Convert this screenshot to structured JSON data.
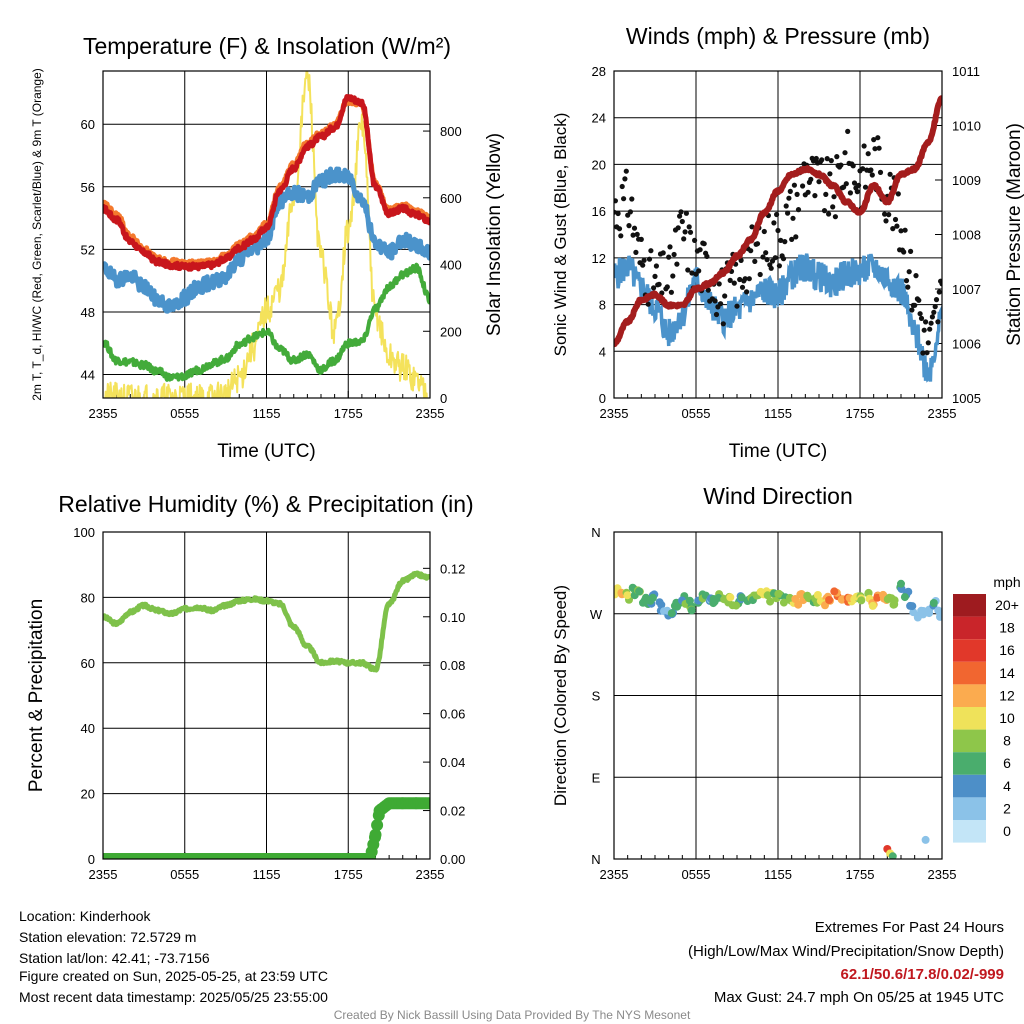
{
  "chart_data": [
    {
      "type": "line",
      "title": "Temperature (F) & Insolation (W/m²)",
      "xlabel": "Time (UTC)",
      "ylabel": "2m T, T_d, HI/WC (Red, Green, Scarlet/Blue) & 9m T (Orange)",
      "ylabel_right": "Solar Insolation (Yellow)",
      "x_ticks": [
        "2355",
        "0555",
        "1155",
        "1755",
        "2355"
      ],
      "ylim": [
        42.5,
        63.4
      ],
      "y_ticks": [
        44,
        48,
        52,
        56,
        60
      ],
      "ylim_right": [
        0,
        980
      ],
      "y_ticks_right": [
        0,
        200,
        400,
        600,
        800
      ],
      "series": [
        {
          "name": "2m T",
          "color": "#c8161c",
          "axis": "left",
          "x": [
            0,
            1,
            2,
            3,
            4,
            5,
            6,
            7,
            8,
            9,
            10,
            11,
            12,
            13,
            14,
            15,
            16,
            17,
            18,
            19,
            20,
            21,
            22,
            23,
            24
          ],
          "y": [
            54.6,
            53.9,
            52.5,
            51.8,
            51.2,
            51.0,
            50.9,
            50.9,
            51.0,
            51.4,
            52.1,
            52.6,
            53.4,
            55.8,
            57.2,
            58.6,
            59.2,
            59.8,
            61.7,
            61.4,
            56.0,
            54.3,
            54.6,
            54.2,
            53.8
          ]
        },
        {
          "name": "9m T",
          "color": "#f4792d",
          "axis": "left",
          "x": [
            0,
            1,
            2,
            3,
            4,
            5,
            6,
            7,
            8,
            9,
            10,
            11,
            12,
            13,
            14,
            15,
            16,
            17,
            18,
            19,
            20,
            21,
            22,
            23,
            24
          ],
          "y": [
            54.9,
            54.2,
            52.8,
            52.0,
            51.4,
            51.2,
            51.1,
            51.1,
            51.2,
            51.6,
            52.3,
            52.8,
            53.6,
            56.0,
            57.4,
            58.8,
            59.4,
            59.9,
            61.5,
            61.2,
            56.2,
            54.5,
            54.8,
            54.4,
            54.0
          ]
        },
        {
          "name": "HI/WC",
          "color": "#4b93cb",
          "axis": "left",
          "x": [
            0,
            1,
            2,
            3,
            4,
            5,
            6,
            7,
            8,
            9,
            10,
            11,
            12,
            13,
            14,
            15,
            16,
            17,
            18,
            19,
            20,
            21,
            22,
            23,
            24
          ],
          "y": [
            50.8,
            50.1,
            50.3,
            49.6,
            48.8,
            48.3,
            48.9,
            49.6,
            49.9,
            50.3,
            51.4,
            52.0,
            52.7,
            55.1,
            55.6,
            55.4,
            56.4,
            56.8,
            56.6,
            55.2,
            52.4,
            51.8,
            52.6,
            52.2,
            51.8
          ]
        },
        {
          "name": "T_d",
          "color": "#43ab3a",
          "axis": "left",
          "x": [
            0,
            1,
            2,
            3,
            4,
            5,
            6,
            7,
            8,
            9,
            10,
            11,
            12,
            13,
            14,
            15,
            16,
            17,
            18,
            19,
            20,
            21,
            22,
            23,
            24
          ],
          "y": [
            46.1,
            44.9,
            44.8,
            44.6,
            44.2,
            43.8,
            43.9,
            44.3,
            44.7,
            45.0,
            45.9,
            46.4,
            46.7,
            45.6,
            44.9,
            45.3,
            44.3,
            44.9,
            46.0,
            46.1,
            48.2,
            49.6,
            50.4,
            50.8,
            48.8
          ]
        },
        {
          "name": "Solar Insolation",
          "color": "#f4e25b",
          "axis": "right",
          "x": [
            0,
            1,
            2,
            3,
            4,
            5,
            6,
            7,
            8,
            9,
            10,
            11,
            12,
            13,
            14,
            15,
            16,
            17,
            18,
            19,
            20,
            21,
            22,
            23,
            24
          ],
          "y": [
            2,
            1,
            1,
            1,
            1,
            1,
            1,
            1,
            1,
            12,
            60,
            150,
            260,
            330,
            600,
            960,
            420,
            200,
            500,
            820,
            250,
            120,
            90,
            55,
            2
          ]
        }
      ]
    },
    {
      "type": "scatter",
      "title": "Winds (mph) & Pressure (mb)",
      "xlabel": "Time (UTC)",
      "ylabel": "Sonic Wind & Gust (Blue, Black)",
      "ylabel_right": "Station Pressure (Maroon)",
      "x_ticks": [
        "2355",
        "0555",
        "1155",
        "1755",
        "2355"
      ],
      "ylim": [
        0,
        28
      ],
      "y_ticks": [
        0,
        4,
        8,
        12,
        16,
        20,
        24,
        28
      ],
      "ylim_right": [
        1005,
        1011
      ],
      "y_ticks_right": [
        1005,
        1006,
        1007,
        1008,
        1009,
        1010,
        1011
      ],
      "series": [
        {
          "name": "Sonic Wind",
          "color": "#4b93cb",
          "axis": "left",
          "x": [
            0,
            1,
            2,
            3,
            4,
            5,
            6,
            7,
            8,
            9,
            10,
            11,
            12,
            13,
            14,
            15,
            16,
            17,
            18,
            19,
            20,
            21,
            22,
            23,
            24
          ],
          "y": [
            10.5,
            11.2,
            9.5,
            7.8,
            5.5,
            7.2,
            10.2,
            8.0,
            6.8,
            7.5,
            8.4,
            9.2,
            8.8,
            10.6,
            11.2,
            10.4,
            9.8,
            10.6,
            10.8,
            11.2,
            10.3,
            9.2,
            5.5,
            2.4,
            6.8
          ]
        },
        {
          "name": "Gust",
          "color": "#111111",
          "axis": "left",
          "x": [
            0,
            1,
            2,
            3,
            4,
            5,
            6,
            7,
            8,
            9,
            10,
            11,
            12,
            13,
            14,
            15,
            16,
            17,
            18,
            19,
            20,
            21,
            22,
            23,
            24
          ],
          "y": [
            16.2,
            16.8,
            11.8,
            9.5,
            10.2,
            14.2,
            11.6,
            10.8,
            8.8,
            10.2,
            12.2,
            13.4,
            13.8,
            15.8,
            19.4,
            18.2,
            17.6,
            20.2,
            18.8,
            20.6,
            17.8,
            14.6,
            9.2,
            4.6,
            8.6
          ]
        },
        {
          "name": "Station Pressure",
          "color": "#a41d1d",
          "axis": "right",
          "x": [
            0,
            1,
            2,
            3,
            4,
            5,
            6,
            7,
            8,
            9,
            10,
            11,
            12,
            13,
            14,
            15,
            16,
            17,
            18,
            19,
            20,
            21,
            22,
            23,
            24
          ],
          "y": [
            1006.0,
            1006.4,
            1006.8,
            1006.9,
            1006.7,
            1006.7,
            1007.0,
            1007.1,
            1007.3,
            1007.6,
            1007.9,
            1008.4,
            1008.8,
            1009.1,
            1009.2,
            1009.1,
            1008.9,
            1008.6,
            1008.4,
            1008.9,
            1008.6,
            1009.1,
            1009.2,
            1009.7,
            1010.5
          ]
        }
      ]
    },
    {
      "type": "line",
      "title": "Relative Humidity (%) & Precipitation (in)",
      "xlabel": "",
      "ylabel": "Percent & Precipitation",
      "x_ticks": [
        "2355",
        "0555",
        "1155",
        "1755",
        "2355"
      ],
      "ylim": [
        0,
        100
      ],
      "y_ticks": [
        0,
        20,
        40,
        60,
        80,
        100
      ],
      "ylim_right": [
        0,
        0.135
      ],
      "y_ticks_right": [
        "0.00",
        "0.02",
        "0.04",
        "0.06",
        "0.08",
        "0.10",
        "0.12"
      ],
      "series": [
        {
          "name": "Relative Humidity",
          "color": "#7ec14a",
          "axis": "left",
          "x": [
            0,
            1,
            2,
            3,
            4,
            5,
            6,
            7,
            8,
            9,
            10,
            11,
            12,
            13,
            14,
            15,
            16,
            17,
            18,
            19,
            20,
            21,
            22,
            23,
            24
          ],
          "y": [
            74.0,
            72.0,
            75.5,
            77.5,
            76.0,
            75.0,
            76.5,
            77.0,
            76.0,
            77.5,
            79.0,
            79.5,
            79.0,
            78.0,
            71.0,
            65.0,
            60.0,
            60.5,
            60.0,
            60.0,
            58.0,
            78.0,
            85.0,
            87.0,
            86.0
          ]
        },
        {
          "name": "Precipitation",
          "color": "#3faa34",
          "axis": "right",
          "x": [
            0,
            2,
            4,
            6,
            8,
            10,
            12,
            14,
            16,
            18,
            19.6,
            20.0,
            20.3,
            21,
            22,
            23,
            24
          ],
          "y": [
            0,
            0,
            0,
            0,
            0,
            0,
            0,
            0,
            0,
            0,
            0,
            0.01,
            0.02,
            0.023,
            0.023,
            0.023,
            0.023
          ]
        }
      ]
    },
    {
      "type": "scatter",
      "title": "Wind Direction",
      "xlabel": "",
      "ylabel": "Direction (Colored By Speed)",
      "x_ticks": [
        "2355",
        "0555",
        "1155",
        "1755",
        "2355"
      ],
      "y_ticks": [
        "N",
        "E",
        "S",
        "W",
        "N"
      ],
      "ylim": [
        0,
        360
      ],
      "legend_title": "mph",
      "legend": [
        {
          "label": "20+",
          "color": "#9e1b1f"
        },
        {
          "label": "18",
          "color": "#c9252a"
        },
        {
          "label": "16",
          "color": "#e1382a"
        },
        {
          "label": "14",
          "color": "#f16630"
        },
        {
          "label": "12",
          "color": "#fbab4f"
        },
        {
          "label": "10",
          "color": "#efe25a"
        },
        {
          "label": "8",
          "color": "#8ec64a"
        },
        {
          "label": "6",
          "color": "#4aad6d"
        },
        {
          "label": "4",
          "color": "#4d8fc8"
        },
        {
          "label": "2",
          "color": "#8bc2e8"
        },
        {
          "label": "0",
          "color": "#c3e5f7"
        }
      ],
      "legend_placement": "right",
      "points": {
        "x": [
          0.2,
          0.6,
          1.0,
          1.4,
          1.8,
          2.2,
          2.6,
          3.0,
          3.4,
          3.8,
          4.2,
          4.6,
          5.0,
          5.4,
          5.8,
          6.2,
          6.6,
          7.0,
          7.4,
          7.8,
          8.2,
          8.6,
          9.0,
          9.4,
          9.8,
          10.2,
          10.6,
          11.0,
          11.4,
          11.8,
          12.2,
          12.6,
          13.0,
          13.4,
          13.8,
          14.2,
          14.6,
          15.0,
          15.4,
          15.8,
          16.2,
          16.6,
          17.0,
          17.4,
          17.8,
          18.2,
          18.6,
          19.0,
          19.4,
          19.8,
          20.2,
          20.6,
          21.0,
          21.4,
          21.8,
          22.2,
          22.6,
          23.0,
          23.4,
          23.8
        ],
        "y": [
          294,
          292,
          290,
          295,
          293,
          285,
          282,
          288,
          278,
          272,
          270,
          280,
          286,
          282,
          278,
          283,
          288,
          287,
          286,
          290,
          285,
          284,
          283,
          288,
          286,
          290,
          293,
          292,
          288,
          290,
          289,
          287,
          285,
          283,
          290,
          292,
          287,
          286,
          283,
          288,
          292,
          290,
          285,
          283,
          286,
          285,
          290,
          283,
          288,
          286,
          286,
          280,
          300,
          290,
          275,
          268,
          270,
          272,
          280,
          270
        ],
        "speed": [
          11,
          12,
          10,
          9,
          8,
          7,
          6,
          5,
          6,
          4,
          5,
          7,
          6,
          8,
          7,
          6,
          7,
          5,
          6,
          9,
          8,
          9,
          7,
          6,
          6,
          8,
          10,
          10,
          9,
          9,
          8,
          9,
          10,
          12,
          11,
          8,
          9,
          10,
          13,
          13,
          14,
          12,
          13,
          11,
          9,
          10,
          10,
          12,
          14,
          12,
          8,
          10,
          7,
          6,
          4,
          2,
          3,
          4,
          5,
          3
        ]
      },
      "outliers": {
        "x": [
          20.0,
          20.2,
          20.4,
          22.8
        ],
        "y": [
          11,
          6,
          3,
          21
        ],
        "speed": [
          16,
          10,
          7,
          2
        ]
      }
    }
  ],
  "info": {
    "location": "Location: Kinderhook",
    "elevation": "Station elevation: 72.5729 m",
    "latlon": "Station lat/lon: 42.41; -73.7156",
    "created": "Figure created on Sun, 2025-05-25, at 23:59 UTC",
    "recent": "Most recent data timestamp: 2025/05/25 23:55:00"
  },
  "extremes": {
    "title": "Extremes For Past 24 Hours",
    "subtitle": "(High/Low/Max Wind/Precipitation/Snow Depth)",
    "values": "62.1/50.6/17.8/0.02/-999",
    "gust": "Max Gust: 24.7 mph On 05/25 at 1945 UTC"
  },
  "credit": "Created By Nick Bassill Using Data Provided By The NYS Mesonet"
}
